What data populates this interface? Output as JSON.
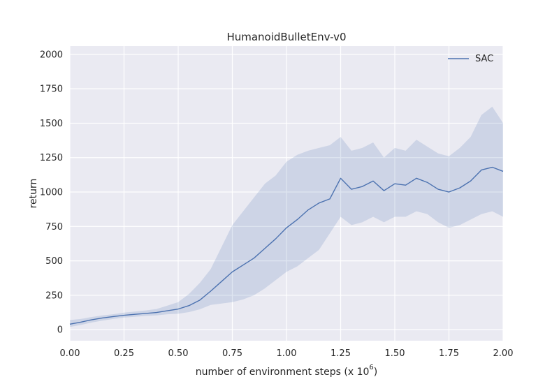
{
  "chart_data": {
    "type": "line",
    "title": "HumanoidBulletEnv-v0",
    "xlabel": "number of environment steps (x 10",
    "xlabel_exponent": "6",
    "xlabel_suffix": ")",
    "ylabel": "return",
    "xlim": [
      0.0,
      2.0
    ],
    "ylim": [
      -80,
      2060
    ],
    "xticks": [
      "0.00",
      "0.25",
      "0.50",
      "0.75",
      "1.00",
      "1.25",
      "1.50",
      "1.75",
      "2.00"
    ],
    "yticks": [
      "0",
      "250",
      "500",
      "750",
      "1000",
      "1250",
      "1500",
      "1750",
      "2000"
    ],
    "grid": true,
    "legend_position": "top-right",
    "series": [
      {
        "name": "SAC",
        "color": "#4c72b0",
        "x": [
          0.0,
          0.05,
          0.1,
          0.15,
          0.2,
          0.25,
          0.3,
          0.35,
          0.4,
          0.45,
          0.5,
          0.55,
          0.6,
          0.65,
          0.7,
          0.75,
          0.8,
          0.85,
          0.9,
          0.95,
          1.0,
          1.05,
          1.1,
          1.15,
          1.2,
          1.25,
          1.3,
          1.35,
          1.4,
          1.45,
          1.5,
          1.55,
          1.6,
          1.65,
          1.7,
          1.75,
          1.8,
          1.85,
          1.9,
          1.95,
          2.0
        ],
        "y": [
          40,
          55,
          72,
          85,
          95,
          105,
          112,
          118,
          125,
          138,
          150,
          175,
          215,
          280,
          350,
          420,
          470,
          520,
          590,
          660,
          740,
          800,
          870,
          920,
          950,
          1100,
          1020,
          1040,
          1080,
          1010,
          1060,
          1050,
          1100,
          1070,
          1020,
          1000,
          1030,
          1080,
          1160,
          1180,
          1150
        ],
        "upper": [
          70,
          78,
          92,
          104,
          112,
          124,
          132,
          140,
          150,
          175,
          200,
          260,
          340,
          440,
          600,
          760,
          860,
          960,
          1060,
          1120,
          1220,
          1270,
          1300,
          1320,
          1340,
          1400,
          1300,
          1320,
          1360,
          1250,
          1320,
          1300,
          1380,
          1330,
          1280,
          1260,
          1320,
          1400,
          1560,
          1620,
          1500
        ],
        "lower": [
          20,
          34,
          52,
          66,
          78,
          88,
          94,
          100,
          104,
          112,
          116,
          128,
          148,
          180,
          190,
          200,
          220,
          250,
          300,
          360,
          420,
          460,
          520,
          580,
          700,
          820,
          760,
          780,
          820,
          780,
          820,
          820,
          860,
          840,
          780,
          740,
          760,
          800,
          840,
          860,
          820
        ]
      }
    ]
  }
}
